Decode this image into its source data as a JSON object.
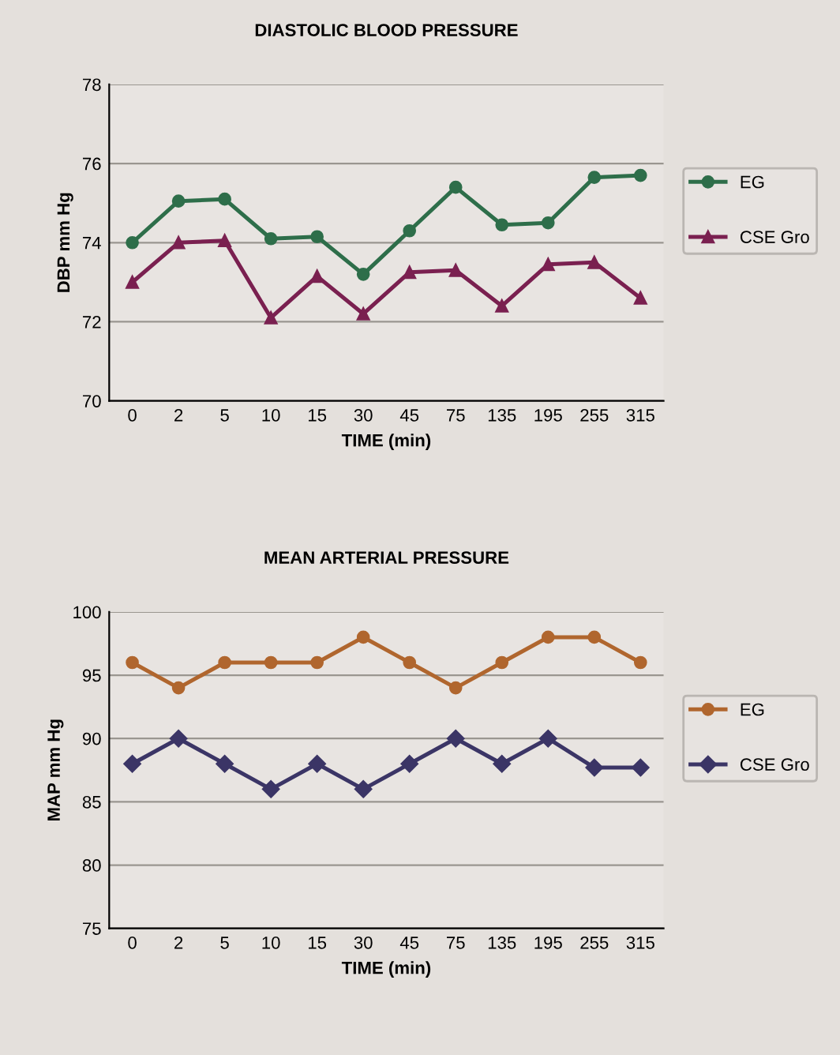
{
  "chart_data": [
    {
      "type": "line",
      "title": "DIASTOLIC BLOOD PRESSURE",
      "xlabel": "TIME (min)",
      "ylabel": "DBP mm Hg",
      "categories": [
        "0",
        "2",
        "5",
        "10",
        "15",
        "30",
        "45",
        "75",
        "135",
        "195",
        "255",
        "315"
      ],
      "series": [
        {
          "name": "EG",
          "color": "#2e6e4a",
          "marker": "circle",
          "values": [
            74,
            75.05,
            75.1,
            74.1,
            74.15,
            73.2,
            74.3,
            75.4,
            74.45,
            74.5,
            75.65,
            75.7
          ]
        },
        {
          "name": "CSE Gro",
          "color": "#7a2050",
          "marker": "triangle",
          "values": [
            73,
            74,
            74.05,
            72.1,
            73.15,
            72.2,
            73.25,
            73.3,
            72.4,
            73.45,
            73.5,
            72.6
          ]
        }
      ],
      "ylim": [
        70,
        78
      ],
      "yticks": [
        70,
        72,
        74,
        76,
        78
      ],
      "grid": "y",
      "legend": "right"
    },
    {
      "type": "line",
      "title": "MEAN ARTERIAL PRESSURE",
      "xlabel": "TIME (min)",
      "ylabel": "MAP mm Hg",
      "categories": [
        "0",
        "2",
        "5",
        "10",
        "15",
        "30",
        "45",
        "75",
        "135",
        "195",
        "255",
        "315"
      ],
      "series": [
        {
          "name": "EG",
          "color": "#b0662e",
          "marker": "circle",
          "values": [
            96,
            94,
            96,
            96,
            96,
            98,
            96,
            94,
            96,
            98,
            98,
            96
          ]
        },
        {
          "name": "CSE Gro",
          "color": "#3b3566",
          "marker": "diamond",
          "values": [
            88,
            90,
            88,
            86,
            88,
            86,
            88,
            90,
            88,
            90,
            87.7,
            87.7
          ]
        }
      ],
      "ylim": [
        75,
        100
      ],
      "yticks": [
        75,
        80,
        85,
        90,
        95,
        100
      ],
      "grid": "y",
      "legend": "right"
    }
  ]
}
